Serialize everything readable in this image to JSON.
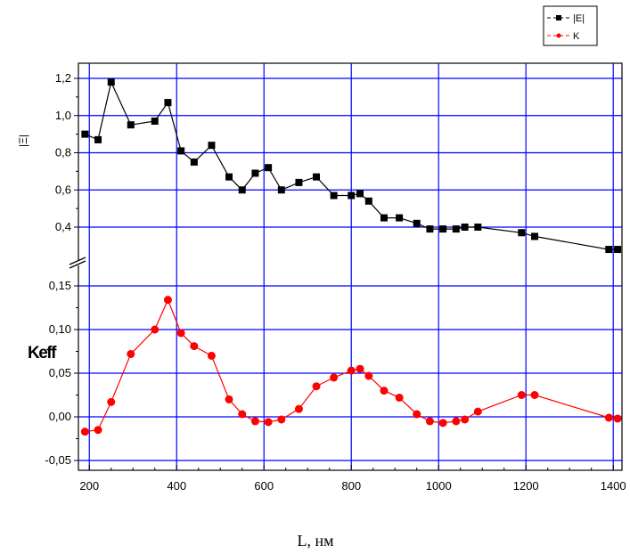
{
  "chart_data": {
    "type": "line",
    "xlabel": "L, нм",
    "xlim": [
      175,
      1420
    ],
    "xticks": [
      "200",
      "400",
      "600",
      "800",
      "1000",
      "1200",
      "1400"
    ],
    "grid": true,
    "legend_position": "top-right",
    "panels": [
      {
        "ylabel": "|Ξ|",
        "ylim": [
          0.2,
          1.3
        ],
        "yticks": [
          "0,4",
          "0,6",
          "0,8",
          "1,0",
          "1,2"
        ],
        "series": [
          {
            "name": "|E|",
            "color": "#000000",
            "marker": "square",
            "x": [
              190,
              220,
              250,
              295,
              350,
              380,
              410,
              440,
              480,
              520,
              550,
              580,
              610,
              640,
              680,
              720,
              760,
              800,
              820,
              840,
              875,
              910,
              950,
              980,
              1010,
              1040,
              1060,
              1090,
              1190,
              1220,
              1390,
              1410
            ],
            "y": [
              0.9,
              0.87,
              1.18,
              0.95,
              0.97,
              1.07,
              0.81,
              0.75,
              0.84,
              0.67,
              0.6,
              0.69,
              0.72,
              0.6,
              0.64,
              0.67,
              0.57,
              0.57,
              0.58,
              0.54,
              0.45,
              0.45,
              0.42,
              0.39,
              0.39,
              0.39,
              0.4,
              0.4,
              0.37,
              0.35,
              0.28,
              0.28
            ]
          }
        ]
      },
      {
        "ylabel": "Keff",
        "ylim": [
          -0.06,
          0.18
        ],
        "yticks": [
          "-0,05",
          "0,00",
          "0,05",
          "0,10",
          "0,15"
        ],
        "series": [
          {
            "name": "K",
            "color": "#ff0000",
            "marker": "circle",
            "x": [
              190,
              220,
              250,
              295,
              350,
              380,
              410,
              440,
              480,
              520,
              550,
              580,
              610,
              640,
              680,
              720,
              760,
              800,
              820,
              840,
              875,
              910,
              950,
              980,
              1010,
              1040,
              1060,
              1090,
              1190,
              1220,
              1390,
              1410
            ],
            "y": [
              -0.017,
              -0.015,
              0.017,
              0.072,
              0.1,
              0.134,
              0.096,
              0.081,
              0.07,
              0.02,
              0.003,
              -0.005,
              -0.006,
              -0.003,
              0.009,
              0.035,
              0.045,
              0.053,
              0.055,
              0.047,
              0.03,
              0.022,
              0.003,
              -0.005,
              -0.007,
              -0.005,
              -0.003,
              0.006,
              0.025,
              0.025,
              -0.001,
              -0.002
            ]
          }
        ]
      }
    ]
  }
}
